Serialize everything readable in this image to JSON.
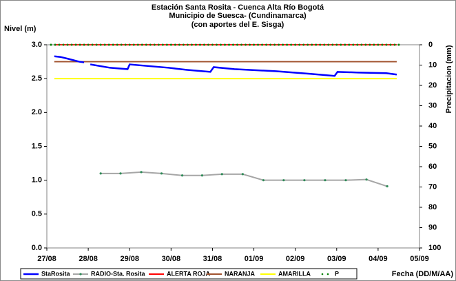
{
  "chart_data": {
    "type": "line",
    "title": [
      "Estación Santa Rosita - Cuenca Alta Río Bogotá",
      "Municipio de Suesca- (Cundinamarca)",
      "(con aportes del  E. Sisga)"
    ],
    "ylabel": "Nivel (m)",
    "y2label": "Precipitacion (mm)",
    "xlabel": "Fecha (DD/M/AA)",
    "xlim": [
      0,
      9
    ],
    "xticks": [
      {
        "value": 0,
        "label": "27/08"
      },
      {
        "value": 1,
        "label": "28/08"
      },
      {
        "value": 2,
        "label": "29/08"
      },
      {
        "value": 3,
        "label": "30/08"
      },
      {
        "value": 4,
        "label": "31/08"
      },
      {
        "value": 5,
        "label": "01/09"
      },
      {
        "value": 6,
        "label": "02/09"
      },
      {
        "value": 7,
        "label": "03/09"
      },
      {
        "value": 8,
        "label": "04/09"
      },
      {
        "value": 9,
        "label": "05/09"
      }
    ],
    "ylim": [
      0,
      3
    ],
    "yticks": [
      {
        "value": 0,
        "label": "0.0"
      },
      {
        "value": 0.5,
        "label": "0.5"
      },
      {
        "value": 1,
        "label": "1.0"
      },
      {
        "value": 1.5,
        "label": "1.5"
      },
      {
        "value": 2,
        "label": "2.0"
      },
      {
        "value": 2.5,
        "label": "2.5"
      },
      {
        "value": 3,
        "label": "3.0"
      }
    ],
    "y2lim": [
      0,
      100
    ],
    "y2_reversed": true,
    "y2ticks": [
      0,
      10,
      20,
      30,
      40,
      50,
      60,
      70,
      80,
      90,
      100
    ],
    "grid": false,
    "legend": "bottom",
    "series": [
      {
        "name": "ALERTA ROJA",
        "color": "#ff0000",
        "style": "line",
        "x": [
          0.18,
          8.45
        ],
        "values": [
          3,
          3
        ]
      },
      {
        "name": "NARANJA",
        "color": "#a0522d",
        "style": "line",
        "x": [
          0.18,
          8.45
        ],
        "values": [
          2.75,
          2.75
        ]
      },
      {
        "name": "AMARILLA",
        "color": "#ffff00",
        "style": "line",
        "x": [
          0.18,
          8.45
        ],
        "values": [
          2.5,
          2.5
        ]
      },
      {
        "name": "StaRosita",
        "color": "#0000ff",
        "style": "thick",
        "x": [
          0.18,
          0.33,
          0.53,
          0.78,
          0.9,
          0.97,
          1.05,
          1.53,
          1.95,
          2.0,
          2.95,
          3.37,
          3.95,
          4.03,
          4.53,
          5.53,
          6.37,
          6.95,
          7.02,
          7.53,
          8.2,
          8.45
        ],
        "values": [
          2.83,
          2.82,
          2.79,
          2.75,
          2.74,
          null,
          2.71,
          2.66,
          2.64,
          2.71,
          2.66,
          2.63,
          2.6,
          2.67,
          2.64,
          2.61,
          2.57,
          2.54,
          2.6,
          2.59,
          2.58,
          2.56
        ]
      },
      {
        "name": "RADIO-Sta. Rosita",
        "color": "#a6a6a6",
        "style": "markers",
        "x": [
          1.3,
          1.78,
          2.28,
          2.77,
          3.27,
          3.75,
          4.23,
          4.73,
          5.23,
          5.72,
          6.22,
          6.72,
          7.22,
          7.72,
          8.22
        ],
        "values": [
          1.1,
          1.1,
          1.12,
          1.1,
          1.07,
          1.07,
          1.09,
          1.09,
          1.0,
          1.0,
          1.0,
          1.0,
          1.0,
          1.01,
          0.91
        ]
      },
      {
        "name": "P",
        "color": "#008000",
        "style": "dots",
        "axis": "y2",
        "x": [
          0.1,
          0.2,
          0.3,
          0.4,
          0.5,
          0.6,
          0.7,
          0.8,
          0.9,
          1.0,
          1.1,
          1.2,
          1.3,
          1.4,
          1.5,
          1.6,
          1.7,
          1.8,
          1.9,
          2.0,
          2.1,
          2.2,
          2.3,
          2.4,
          2.5,
          2.6,
          2.7,
          2.8,
          2.9,
          3.0,
          3.1,
          3.2,
          3.3,
          3.4,
          3.5,
          3.6,
          3.7,
          3.8,
          3.9,
          4.0,
          4.1,
          4.2,
          4.3,
          4.4,
          4.5,
          4.6,
          4.7,
          4.8,
          4.9,
          5.0,
          5.1,
          5.2,
          5.3,
          5.4,
          5.5,
          5.6,
          5.7,
          5.8,
          5.9,
          6.0,
          6.1,
          6.2,
          6.3,
          6.4,
          6.5,
          6.6,
          6.7,
          6.8,
          6.9,
          7.0,
          7.1,
          7.2,
          7.3,
          7.4,
          7.5,
          7.6,
          7.7,
          7.8,
          7.9,
          8.0,
          8.1,
          8.2,
          8.3,
          8.4,
          8.5
        ],
        "values": [
          0,
          0,
          0,
          0,
          0,
          0,
          0,
          0,
          0,
          0,
          0,
          0,
          0,
          0,
          0,
          0,
          0,
          0,
          0,
          0,
          0,
          0,
          0,
          0,
          0,
          0,
          0,
          0,
          0,
          0,
          0,
          0,
          0,
          0,
          0,
          0,
          0,
          0,
          0,
          0,
          0,
          0,
          0,
          0,
          0,
          0,
          0,
          0,
          0,
          0,
          0,
          0,
          0,
          0,
          0,
          0,
          0,
          0,
          0,
          0,
          0,
          0,
          0,
          0,
          0,
          0,
          0,
          0,
          0,
          0,
          0,
          0,
          0,
          0,
          0,
          0,
          0,
          0,
          0,
          0,
          0,
          0,
          0,
          0,
          0
        ]
      }
    ],
    "legend_order": [
      3,
      4,
      0,
      1,
      2,
      5
    ]
  }
}
